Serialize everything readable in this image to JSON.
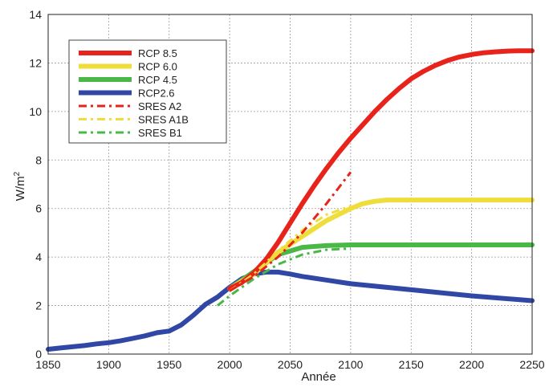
{
  "chart_data": {
    "type": "line",
    "xlabel": "Année",
    "ylabel_main": "W/m",
    "ylabel_sup": "2",
    "xlim": [
      1850,
      2250
    ],
    "ylim": [
      0,
      14
    ],
    "xticks": [
      1850,
      1900,
      1950,
      2000,
      2050,
      2100,
      2150,
      2200,
      2250
    ],
    "yticks": [
      0,
      2,
      4,
      6,
      8,
      10,
      12,
      14
    ],
    "grid": true,
    "legend_position": "top-left",
    "series": [
      {
        "name": "RCP 8.5",
        "color": "#e8231b",
        "style": "solid",
        "x": [
          2000,
          2010,
          2020,
          2030,
          2040,
          2050,
          2060,
          2070,
          2080,
          2090,
          2100,
          2110,
          2120,
          2130,
          2140,
          2150,
          2160,
          2170,
          2180,
          2190,
          2200,
          2210,
          2220,
          2230,
          2240,
          2250
        ],
        "y": [
          2.7,
          2.95,
          3.35,
          3.9,
          4.6,
          5.4,
          6.2,
          6.95,
          7.65,
          8.3,
          8.9,
          9.45,
          10.0,
          10.5,
          10.95,
          11.35,
          11.65,
          11.9,
          12.1,
          12.25,
          12.35,
          12.42,
          12.46,
          12.49,
          12.5,
          12.5
        ]
      },
      {
        "name": "RCP 6.0",
        "color": "#eedd3a",
        "style": "solid",
        "x": [
          2000,
          2020,
          2040,
          2060,
          2080,
          2100,
          2110,
          2120,
          2130,
          2140,
          2150,
          2200,
          2250
        ],
        "y": [
          2.7,
          3.3,
          4.2,
          4.85,
          5.5,
          6.0,
          6.2,
          6.3,
          6.35,
          6.35,
          6.35,
          6.35,
          6.35
        ]
      },
      {
        "name": "RCP 4.5",
        "color": "#49b847",
        "style": "solid",
        "x": [
          2000,
          2020,
          2040,
          2060,
          2080,
          2100,
          2150,
          2200,
          2250
        ],
        "y": [
          2.7,
          3.4,
          4.1,
          4.4,
          4.47,
          4.5,
          4.5,
          4.5,
          4.5
        ]
      },
      {
        "name": "RCP2.6",
        "color": "#3047a6",
        "style": "solid",
        "x": [
          1850,
          1860,
          1870,
          1880,
          1890,
          1900,
          1910,
          1920,
          1930,
          1940,
          1950,
          1960,
          1970,
          1980,
          1990,
          2000,
          2010,
          2020,
          2030,
          2040,
          2050,
          2060,
          2080,
          2100,
          2150,
          2200,
          2250
        ],
        "y": [
          0.2,
          0.25,
          0.3,
          0.35,
          0.42,
          0.47,
          0.55,
          0.65,
          0.75,
          0.88,
          0.95,
          1.2,
          1.6,
          2.05,
          2.35,
          2.75,
          3.1,
          3.3,
          3.38,
          3.38,
          3.3,
          3.2,
          3.05,
          2.9,
          2.65,
          2.4,
          2.2
        ]
      },
      {
        "name": "SRES A2",
        "color": "#e8231b",
        "style": "dashdot",
        "x": [
          2000,
          2020,
          2040,
          2060,
          2080,
          2100
        ],
        "y": [
          2.6,
          3.2,
          4.0,
          5.0,
          6.2,
          7.5
        ]
      },
      {
        "name": "SRES A1B",
        "color": "#eedd3a",
        "style": "dashdot",
        "x": [
          2000,
          2020,
          2040,
          2060,
          2080,
          2100
        ],
        "y": [
          2.6,
          3.3,
          4.25,
          5.1,
          5.75,
          6.1
        ]
      },
      {
        "name": "SRES B1",
        "color": "#49b847",
        "style": "dashdot",
        "x": [
          1990,
          2000,
          2020,
          2040,
          2060,
          2080,
          2100
        ],
        "y": [
          2.0,
          2.4,
          3.1,
          3.7,
          4.1,
          4.3,
          4.35
        ]
      }
    ]
  }
}
